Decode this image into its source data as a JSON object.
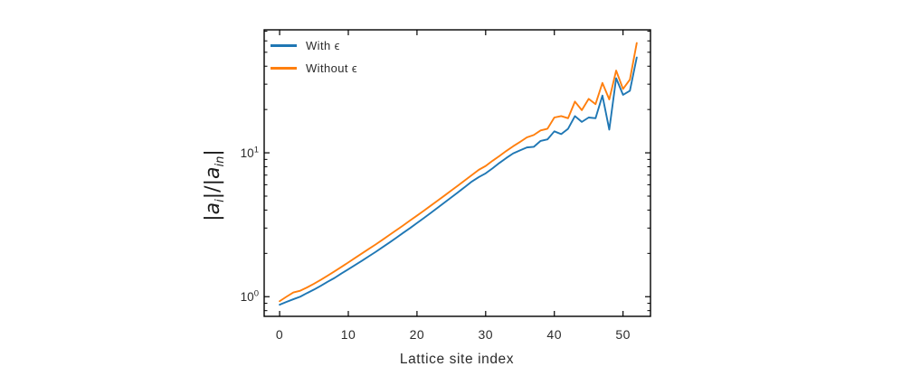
{
  "figure": {
    "background": "#ffffff",
    "text_color": "#2b2b2b",
    "frame_color": "#000000",
    "ylabel_parts": {
      "bar1": "|",
      "a1": "a",
      "sub1": "i",
      "mid": "|/|",
      "a2": "a",
      "sub2": "in",
      "bar2": "|"
    }
  },
  "chart_data": {
    "type": "line",
    "title": "",
    "xlabel": "Lattice site index",
    "ylabel": "|a_i|/|a_in|",
    "yscale": "log",
    "grid": false,
    "legend_position": "upper left",
    "xlim": [
      -2.25,
      54.0
    ],
    "ylim": [
      0.73,
      71.6
    ],
    "x_ticks": [
      0,
      10,
      20,
      30,
      40,
      50
    ],
    "y_ticks": [
      {
        "value": 1,
        "base": "10",
        "exp": "0"
      },
      {
        "value": 10,
        "base": "10",
        "exp": "1"
      }
    ],
    "y_minor_ticks": [
      0.8,
      0.9,
      2,
      3,
      4,
      5,
      6,
      7,
      8,
      9,
      20,
      30,
      40,
      50,
      60,
      70
    ],
    "x": [
      0,
      1,
      2,
      3,
      4,
      5,
      6,
      7,
      8,
      9,
      10,
      11,
      12,
      13,
      14,
      15,
      16,
      17,
      18,
      19,
      20,
      21,
      22,
      23,
      24,
      25,
      26,
      27,
      28,
      29,
      30,
      31,
      32,
      33,
      34,
      35,
      36,
      37,
      38,
      39,
      40,
      41,
      42,
      43,
      44,
      45,
      46,
      47,
      48,
      49,
      50,
      51,
      52
    ],
    "series": [
      {
        "name": "With ϵ",
        "color": "#1f77b4",
        "values": [
          0.88,
          0.92,
          0.96,
          1.0,
          1.06,
          1.12,
          1.19,
          1.27,
          1.35,
          1.45,
          1.55,
          1.66,
          1.78,
          1.91,
          2.05,
          2.21,
          2.38,
          2.57,
          2.78,
          3.0,
          3.25,
          3.52,
          3.82,
          4.15,
          4.51,
          4.9,
          5.33,
          5.8,
          6.32,
          6.78,
          7.2,
          7.8,
          8.5,
          9.2,
          9.9,
          10.4,
          10.9,
          11.0,
          12.1,
          12.4,
          14.1,
          13.5,
          14.7,
          18.0,
          16.4,
          17.6,
          17.4,
          25.0,
          14.5,
          33.0,
          25.3,
          27.0,
          46.0
        ]
      },
      {
        "name": "Without ϵ",
        "color": "#ff7f0e",
        "values": [
          0.93,
          1.0,
          1.07,
          1.1,
          1.16,
          1.23,
          1.31,
          1.4,
          1.5,
          1.61,
          1.73,
          1.86,
          2.0,
          2.15,
          2.31,
          2.49,
          2.69,
          2.9,
          3.13,
          3.39,
          3.66,
          3.96,
          4.29,
          4.65,
          5.04,
          5.47,
          5.94,
          6.45,
          7.01,
          7.62,
          8.1,
          8.8,
          9.5,
          10.3,
          11.1,
          11.9,
          12.8,
          13.3,
          14.3,
          14.7,
          17.6,
          18.0,
          17.4,
          22.7,
          19.8,
          23.7,
          21.8,
          30.6,
          23.5,
          37.3,
          27.8,
          32.3,
          58.0
        ]
      }
    ]
  }
}
